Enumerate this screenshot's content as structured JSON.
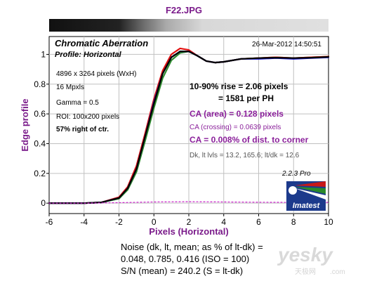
{
  "chart_data": {
    "type": "line",
    "title": "F22.JPG",
    "xlabel": "Pixels (Horizontal)",
    "ylabel": "Edge profile",
    "xlim": [
      -6,
      10
    ],
    "ylim": [
      -0.07,
      1.12
    ],
    "x_ticks": [
      -6,
      -4,
      -2,
      0,
      2,
      4,
      6,
      8,
      10
    ],
    "y_ticks": [
      0,
      0.2,
      0.4,
      0.6,
      0.8,
      1
    ],
    "y_tick_labels": [
      "0",
      "0.2",
      "0.4",
      "0.6",
      "0.8",
      "1"
    ],
    "grid": true,
    "series": [
      {
        "color": "#2e8b2e",
        "x": [
          -6,
          -5,
          -4,
          -3,
          -2,
          -1.5,
          -1,
          -0.5,
          0,
          0.5,
          1,
          1.5,
          2,
          2.5,
          3,
          3.5,
          4,
          5,
          6,
          7,
          8,
          9,
          10
        ],
        "y": [
          0,
          0,
          0,
          0.005,
          0.03,
          0.09,
          0.21,
          0.42,
          0.64,
          0.84,
          0.96,
          1.01,
          1.02,
          0.99,
          0.955,
          0.945,
          0.95,
          0.97,
          0.975,
          0.98,
          0.975,
          0.98,
          0.985
        ]
      },
      {
        "color": "#e01010",
        "x": [
          -6,
          -5,
          -4,
          -3,
          -2,
          -1.5,
          -1,
          -0.5,
          0,
          0.5,
          1,
          1.5,
          2,
          2.5,
          3,
          3.5,
          4,
          5,
          6,
          7,
          8,
          9,
          10
        ],
        "y": [
          0,
          0,
          0,
          0.005,
          0.04,
          0.11,
          0.25,
          0.47,
          0.7,
          0.89,
          1.0,
          1.04,
          1.03,
          0.99,
          0.955,
          0.945,
          0.95,
          0.97,
          0.975,
          0.98,
          0.975,
          0.98,
          0.985
        ]
      },
      {
        "color": "#1a1ad0",
        "x": [
          -6,
          -5,
          -4,
          -3,
          -2,
          -1.5,
          -1,
          -0.5,
          0,
          0.5,
          1,
          1.5,
          2,
          2.5,
          3,
          3.5,
          4,
          5,
          6,
          7,
          8,
          9,
          10
        ],
        "y": [
          0,
          0,
          0,
          0.005,
          0.035,
          0.1,
          0.23,
          0.45,
          0.68,
          0.87,
          0.98,
          1.02,
          1.02,
          0.99,
          0.955,
          0.945,
          0.95,
          0.97,
          0.97,
          0.975,
          0.97,
          0.975,
          0.98
        ]
      },
      {
        "color": "#000000",
        "x": [
          -6,
          -5,
          -4,
          -3,
          -2,
          -1.5,
          -1,
          -0.5,
          0,
          0.5,
          1,
          1.5,
          2,
          2.5,
          3,
          3.5,
          4,
          5,
          6,
          7,
          8,
          9,
          10
        ],
        "y": [
          0,
          0,
          0,
          0.005,
          0.035,
          0.1,
          0.23,
          0.45,
          0.67,
          0.87,
          0.98,
          1.02,
          1.02,
          0.99,
          0.955,
          0.945,
          0.95,
          0.97,
          0.975,
          0.978,
          0.975,
          0.978,
          0.983
        ]
      },
      {
        "color": "#cc22cc",
        "dashed": true,
        "x": [
          -6,
          -4,
          -2,
          0,
          2,
          4,
          6,
          8,
          10
        ],
        "y": [
          0,
          0,
          0.003,
          0.008,
          0.01,
          0.008,
          0.006,
          0.005,
          0.005
        ]
      }
    ],
    "annotations": {
      "header": "Chromatic Aberration",
      "profile": "Profile: Horizontal",
      "date": "26-Mar-2012 14:50:51",
      "pixels": "4896 x 3264 pixels (WxH)",
      "mpxls": "16 Mpxls",
      "gamma": "Gamma = 0.5",
      "roi": "ROI: 100x200 pixels",
      "pos": "57% right of ctr.",
      "rise1": "10-90% rise = 2.06 pixels",
      "rise2": "= 1581 per PH",
      "ca_area": "CA (area) = 0.128 pixels",
      "ca_cross": "CA (crossing) = 0.0639 pixels",
      "ca_dist": "CA = 0.008% of dist. to corner",
      "dk": "Dk, lt lvls = 13.2, 165.6;  lt/dk = 12.6",
      "version": "2.2.3  Pro"
    },
    "footer": {
      "line1": "Noise (dk, lt, mean; as % of lt-dk) =",
      "line2": "0.048,  0.785,  0.416  (ISO =  100)",
      "line3": "S/N (mean) = 240.2  (S = lt-dk)"
    }
  },
  "logo": {
    "text": "Imatest"
  },
  "watermark": {
    "big": "yesky",
    "small": "天极网",
    "small2": ".com"
  },
  "colors": {
    "title": "#7a1a8a",
    "ca": "#8a1f9a",
    "grid": "#c0c0c0"
  }
}
